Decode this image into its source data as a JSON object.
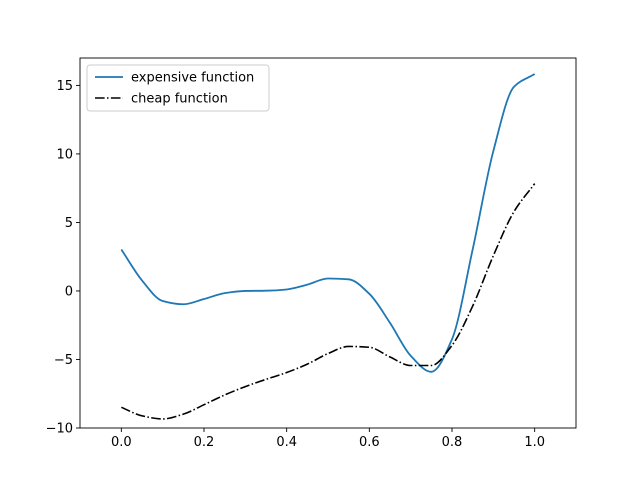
{
  "chart_data": {
    "type": "line",
    "title": "",
    "xlabel": "",
    "ylabel": "",
    "xlim": [
      -0.1,
      1.1
    ],
    "ylim": [
      -10,
      17
    ],
    "xticks": [
      0.0,
      0.2,
      0.4,
      0.6,
      0.8,
      1.0
    ],
    "xtick_labels": [
      "0.0",
      "0.2",
      "0.4",
      "0.6",
      "0.8",
      "1.0"
    ],
    "yticks": [
      -10,
      -5,
      0,
      5,
      10,
      15
    ],
    "ytick_labels": [
      "−10",
      "−5",
      "0",
      "5",
      "10",
      "15"
    ],
    "grid": false,
    "legend_position": "upper-left",
    "series": [
      {
        "name": "expensive function",
        "color": "#1f77b4",
        "style": "solid",
        "x": [
          0.0,
          0.05,
          0.1,
          0.15,
          0.2,
          0.25,
          0.3,
          0.35,
          0.4,
          0.45,
          0.5,
          0.55,
          0.6,
          0.65,
          0.7,
          0.75,
          0.8,
          0.85,
          0.9,
          0.95,
          1.0
        ],
        "y": [
          3.03,
          0.77,
          -0.73,
          -0.97,
          -0.59,
          -0.16,
          0.0,
          0.02,
          0.11,
          0.46,
          0.91,
          0.85,
          -0.21,
          -2.33,
          -4.73,
          -5.9,
          -3.52,
          3.03,
          10.21,
          14.9,
          15.83
        ]
      },
      {
        "name": "cheap function",
        "color": "#000000",
        "style": "dashdot",
        "x": [
          0.0,
          0.05,
          0.1,
          0.15,
          0.2,
          0.25,
          0.3,
          0.35,
          0.4,
          0.45,
          0.5,
          0.55,
          0.6,
          0.65,
          0.7,
          0.75,
          0.8,
          0.85,
          0.9,
          0.95,
          1.0
        ],
        "y": [
          -8.49,
          -9.11,
          -9.34,
          -8.99,
          -8.3,
          -7.59,
          -6.98,
          -6.45,
          -5.95,
          -5.34,
          -4.57,
          -4.05,
          -4.11,
          -4.82,
          -5.44,
          -5.44,
          -3.97,
          -1.1,
          2.57,
          5.79,
          7.83
        ]
      }
    ]
  }
}
